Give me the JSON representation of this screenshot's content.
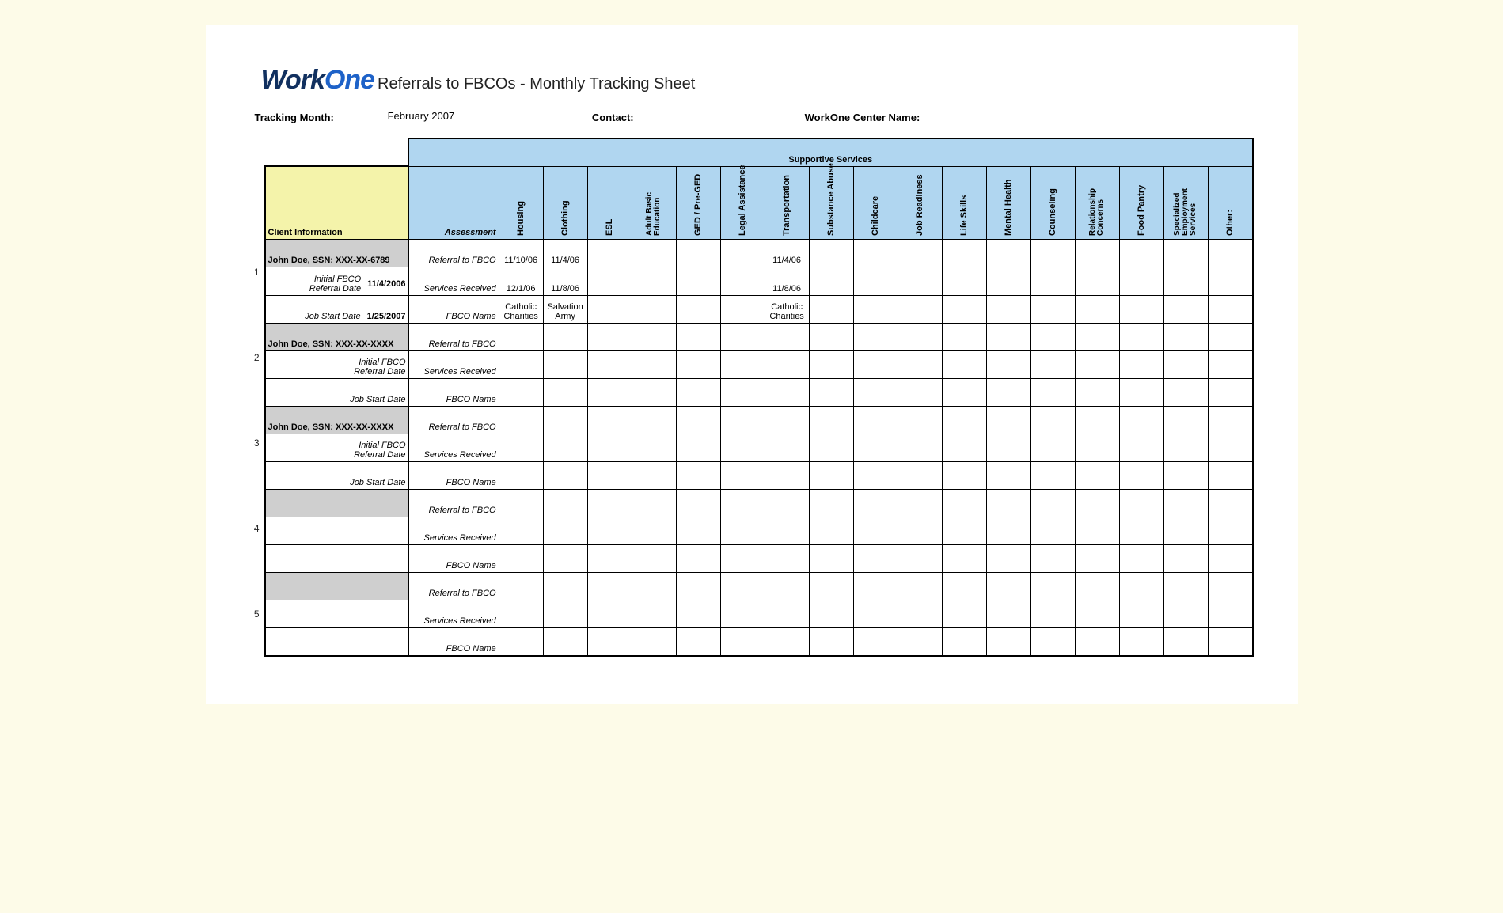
{
  "logo": {
    "part1": "Work",
    "part2": "One"
  },
  "title": "Referrals to FBCOs - Monthly Tracking Sheet",
  "header_fields": {
    "tracking_month_label": "Tracking Month:",
    "tracking_month_value": "February 2007",
    "contact_label": "Contact:",
    "contact_value": "",
    "center_label": "WorkOne Center Name:",
    "center_value": ""
  },
  "columns": {
    "supportive_header": "Supportive Services",
    "client_info": "Client Information",
    "assessment": "Assessment",
    "services": [
      "Housing",
      "Clothing",
      "ESL",
      "Adult Basic\nEducation",
      "GED / Pre-GED",
      "Legal Assistance",
      "Transportation",
      "Substance Abuse",
      "Childcare",
      "Job Readiness",
      "Life Skills",
      "Mental Health",
      "Counseling",
      "Relationship\nConcerns",
      "Food Pantry",
      "Specialized\nEmployment\nServices",
      "Other:"
    ]
  },
  "row_labels": {
    "referral": "Referral to FBCO",
    "services_received": "Services Received",
    "fbco_name": "FBCO Name",
    "initial_date": "Initial FBCO Referral Date",
    "job_start": "Job Start Date"
  },
  "clients": [
    {
      "num": "1",
      "name": "John Doe, SSN: XXX-XX-6789",
      "referral_date": "11/4/2006",
      "job_start_date": "1/25/2007",
      "rows": {
        "referral": [
          "11/10/06",
          "11/4/06",
          "",
          "",
          "",
          "",
          "11/4/06",
          "",
          "",
          "",
          "",
          "",
          "",
          "",
          "",
          "",
          ""
        ],
        "services": [
          "12/1/06",
          "11/8/06",
          "",
          "",
          "",
          "",
          "11/8/06",
          "",
          "",
          "",
          "",
          "",
          "",
          "",
          "",
          "",
          ""
        ],
        "fbco": [
          "Catholic Charities",
          "Salvation Army",
          "",
          "",
          "",
          "",
          "Catholic Charities",
          "",
          "",
          "",
          "",
          "",
          "",
          "",
          "",
          "",
          ""
        ]
      }
    },
    {
      "num": "2",
      "name": "John Doe, SSN: XXX-XX-XXXX",
      "referral_date": "",
      "job_start_date": "",
      "rows": {
        "referral": [
          "",
          "",
          "",
          "",
          "",
          "",
          "",
          "",
          "",
          "",
          "",
          "",
          "",
          "",
          "",
          "",
          ""
        ],
        "services": [
          "",
          "",
          "",
          "",
          "",
          "",
          "",
          "",
          "",
          "",
          "",
          "",
          "",
          "",
          "",
          "",
          ""
        ],
        "fbco": [
          "",
          "",
          "",
          "",
          "",
          "",
          "",
          "",
          "",
          "",
          "",
          "",
          "",
          "",
          "",
          "",
          ""
        ]
      }
    },
    {
      "num": "3",
      "name": "John Doe, SSN: XXX-XX-XXXX",
      "referral_date": "",
      "job_start_date": "",
      "rows": {
        "referral": [
          "",
          "",
          "",
          "",
          "",
          "",
          "",
          "",
          "",
          "",
          "",
          "",
          "",
          "",
          "",
          "",
          ""
        ],
        "services": [
          "",
          "",
          "",
          "",
          "",
          "",
          "",
          "",
          "",
          "",
          "",
          "",
          "",
          "",
          "",
          "",
          ""
        ],
        "fbco": [
          "",
          "",
          "",
          "",
          "",
          "",
          "",
          "",
          "",
          "",
          "",
          "",
          "",
          "",
          "",
          "",
          ""
        ]
      }
    },
    {
      "num": "4",
      "name": "",
      "referral_date": "",
      "job_start_date": "",
      "rows": {
        "referral": [
          "",
          "",
          "",
          "",
          "",
          "",
          "",
          "",
          "",
          "",
          "",
          "",
          "",
          "",
          "",
          "",
          ""
        ],
        "services": [
          "",
          "",
          "",
          "",
          "",
          "",
          "",
          "",
          "",
          "",
          "",
          "",
          "",
          "",
          "",
          "",
          ""
        ],
        "fbco": [
          "",
          "",
          "",
          "",
          "",
          "",
          "",
          "",
          "",
          "",
          "",
          "",
          "",
          "",
          "",
          "",
          ""
        ]
      }
    },
    {
      "num": "5",
      "name": "",
      "referral_date": "",
      "job_start_date": "",
      "rows": {
        "referral": [
          "",
          "",
          "",
          "",
          "",
          "",
          "",
          "",
          "",
          "",
          "",
          "",
          "",
          "",
          "",
          "",
          ""
        ],
        "services": [
          "",
          "",
          "",
          "",
          "",
          "",
          "",
          "",
          "",
          "",
          "",
          "",
          "",
          "",
          "",
          "",
          ""
        ],
        "fbco": [
          "",
          "",
          "",
          "",
          "",
          "",
          "",
          "",
          "",
          "",
          "",
          "",
          "",
          "",
          "",
          "",
          ""
        ]
      }
    }
  ],
  "colors": {
    "page_bg": "#fdfbe8",
    "sheet_bg": "#ffffff",
    "blue_header": "#b0d6f0",
    "yellow_header": "#f4f3aa",
    "grey_row": "#cfcfcf",
    "logo_dark": "#11305f",
    "logo_blue": "#1e62c8"
  }
}
